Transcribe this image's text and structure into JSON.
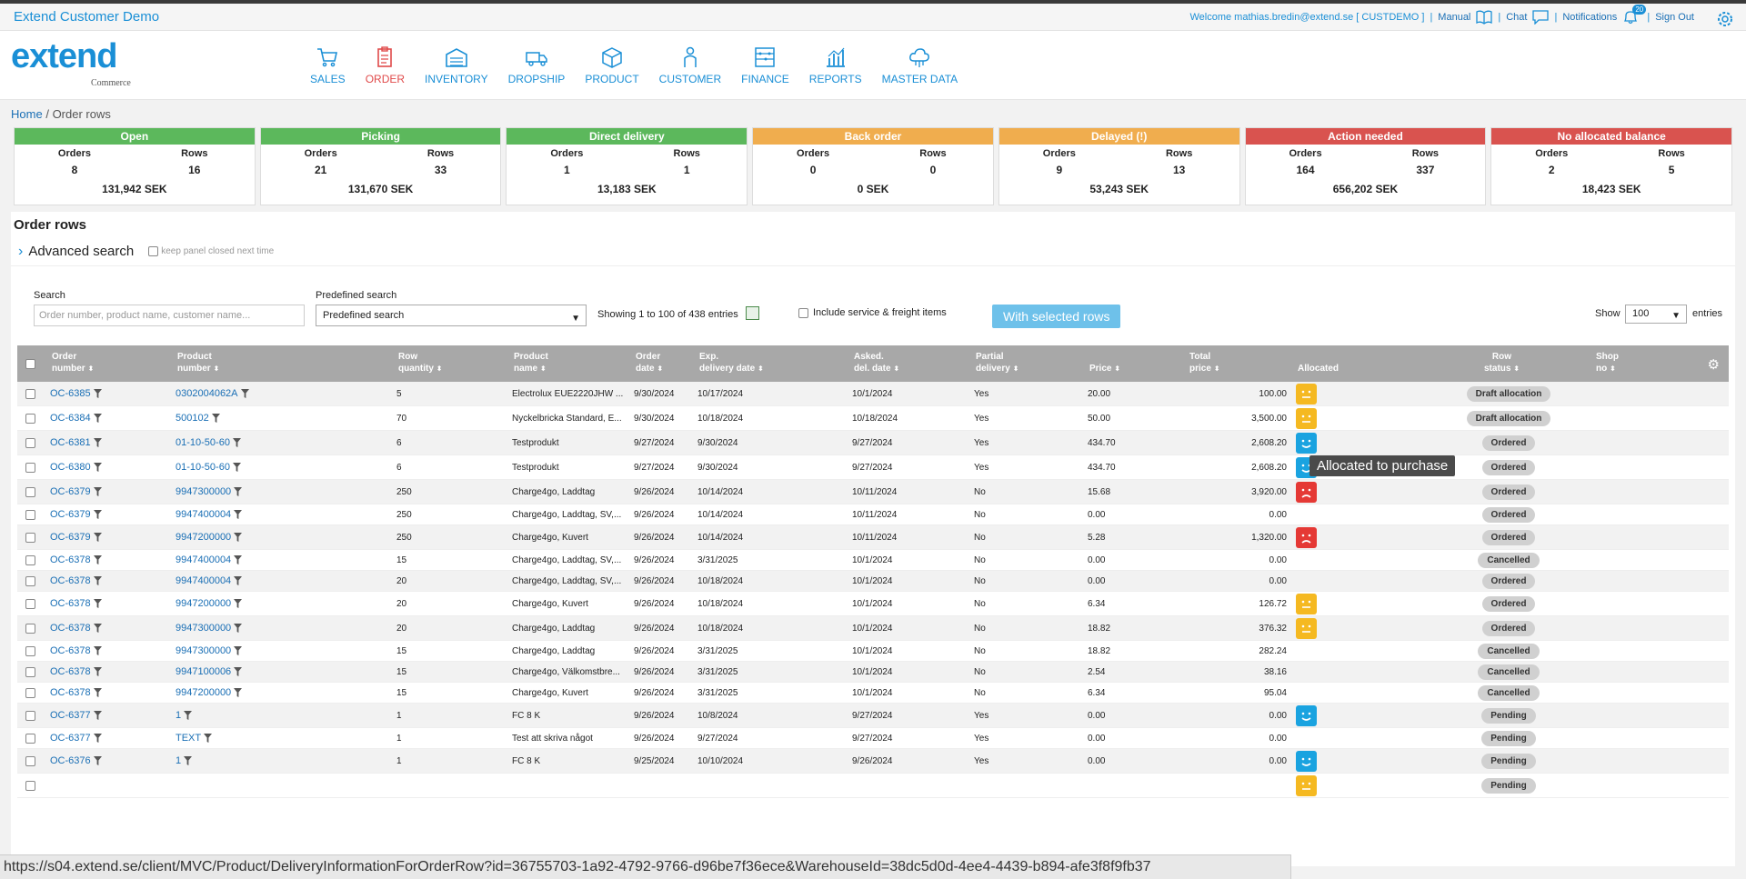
{
  "app": {
    "title": "Extend Customer Demo",
    "welcome": "Welcome mathias.bredin@extend.se [ CUSTDEMO ]",
    "manual": "Manual",
    "chat": "Chat",
    "notifications": "Notifications",
    "notif_count": "20",
    "signout": "Sign Out"
  },
  "logo": {
    "text": "extend",
    "sub": "Commerce"
  },
  "nav": [
    {
      "label": "SALES",
      "icon": "cart-icon"
    },
    {
      "label": "ORDER",
      "icon": "clipboard-icon",
      "active": true
    },
    {
      "label": "INVENTORY",
      "icon": "warehouse-icon"
    },
    {
      "label": "DROPSHIP",
      "icon": "truck-icon"
    },
    {
      "label": "PRODUCT",
      "icon": "box-icon"
    },
    {
      "label": "CUSTOMER",
      "icon": "person-icon"
    },
    {
      "label": "FINANCE",
      "icon": "abacus-icon"
    },
    {
      "label": "REPORTS",
      "icon": "chart-icon"
    },
    {
      "label": "MASTER DATA",
      "icon": "cloud-icon"
    }
  ],
  "breadcrumb": {
    "home": "Home",
    "sep": "/",
    "current": "Order rows"
  },
  "cards": [
    {
      "title": "Open",
      "color": "#5cb85c",
      "orders": "8",
      "rows": "16",
      "sum": "131,942 SEK"
    },
    {
      "title": "Picking",
      "color": "#5cb85c",
      "orders": "21",
      "rows": "33",
      "sum": "131,670 SEK"
    },
    {
      "title": "Direct delivery",
      "color": "#5cb85c",
      "orders": "1",
      "rows": "1",
      "sum": "13,183 SEK"
    },
    {
      "title": "Back order",
      "color": "#f0ad4e",
      "orders": "0",
      "rows": "0",
      "sum": "0 SEK"
    },
    {
      "title": "Delayed (!)",
      "color": "#f0ad4e",
      "orders": "9",
      "rows": "13",
      "sum": "53,243 SEK"
    },
    {
      "title": "Action needed",
      "color": "#d9534f",
      "orders": "164",
      "rows": "337",
      "sum": "656,202 SEK"
    },
    {
      "title": "No allocated balance",
      "color": "#d9534f",
      "orders": "2",
      "rows": "5",
      "sum": "18,423 SEK"
    }
  ],
  "card_labels": {
    "orders": "Orders",
    "rows": "Rows"
  },
  "panel": {
    "title": "Order rows",
    "advanced": "Advanced search",
    "keep_closed": "keep panel closed next time",
    "search_label": "Search",
    "search_placeholder": "Order number, product name, customer name...",
    "predef_label": "Predefined search",
    "predef_value": "Predefined search",
    "showing": "Showing 1 to 100 of 438 entries",
    "include": "Include service & freight items",
    "with_selected": "With selected rows",
    "show": "Show",
    "show_value": "100",
    "entries": "entries"
  },
  "columns": {
    "order_number": [
      "Order",
      "number"
    ],
    "product_number": [
      "Product",
      "number"
    ],
    "row_quantity": [
      "Row",
      "quantity"
    ],
    "product_name": [
      "Product",
      "name"
    ],
    "order_date": [
      "Order",
      "date"
    ],
    "exp_date": [
      "Exp.",
      "delivery date"
    ],
    "asked_date": [
      "Asked.",
      "del. date"
    ],
    "partial": [
      "Partial",
      "delivery"
    ],
    "price": [
      "",
      "Price"
    ],
    "total": [
      "Total",
      "price"
    ],
    "allocated": [
      "",
      "Allocated"
    ],
    "status": [
      "Row",
      "status"
    ],
    "shop": [
      "Shop",
      "no"
    ]
  },
  "rows": [
    {
      "order": "OC-6385",
      "product": "0302004062A",
      "qty": "5",
      "name": "Electrolux EUE2220JHW ...",
      "odate": "9/30/2024",
      "exp": "10/17/2024",
      "asked": "10/1/2024",
      "partial": "Yes",
      "price": "20.00",
      "total": "100.00",
      "alloc": "yellow",
      "status": "Draft allocation"
    },
    {
      "order": "OC-6384",
      "product": "500102",
      "qty": "70",
      "name": "Nyckelbricka Standard, E...",
      "odate": "9/30/2024",
      "exp": "10/18/2024",
      "asked": "10/18/2024",
      "partial": "Yes",
      "price": "50.00",
      "total": "3,500.00",
      "alloc": "yellow",
      "status": "Draft allocation"
    },
    {
      "order": "OC-6381",
      "product": "01-10-50-60",
      "qty": "6",
      "name": "Testprodukt",
      "odate": "9/27/2024",
      "exp": "9/30/2024",
      "asked": "9/27/2024",
      "partial": "Yes",
      "price": "434.70",
      "total": "2,608.20",
      "alloc": "blue",
      "status": "Ordered"
    },
    {
      "order": "OC-6380",
      "product": "01-10-50-60",
      "qty": "6",
      "name": "Testprodukt",
      "odate": "9/27/2024",
      "exp": "9/30/2024",
      "asked": "9/27/2024",
      "partial": "Yes",
      "price": "434.70",
      "total": "2,608.20",
      "alloc": "blue",
      "status": "Ordered"
    },
    {
      "order": "OC-6379",
      "product": "9947300000",
      "qty": "250",
      "name": "Charge4go, Laddtag",
      "odate": "9/26/2024",
      "exp": "10/14/2024",
      "asked": "10/11/2024",
      "partial": "No",
      "price": "15.68",
      "total": "3,920.00",
      "alloc": "red",
      "status": "Ordered"
    },
    {
      "order": "OC-6379",
      "product": "9947400004",
      "qty": "250",
      "name": "Charge4go, Laddtag, SV,...",
      "odate": "9/26/2024",
      "exp": "10/14/2024",
      "asked": "10/11/2024",
      "partial": "No",
      "price": "0.00",
      "total": "0.00",
      "alloc": "",
      "status": "Ordered",
      "short": true
    },
    {
      "order": "OC-6379",
      "product": "9947200000",
      "qty": "250",
      "name": "Charge4go, Kuvert",
      "odate": "9/26/2024",
      "exp": "10/14/2024",
      "asked": "10/11/2024",
      "partial": "No",
      "price": "5.28",
      "total": "1,320.00",
      "alloc": "red",
      "status": "Ordered"
    },
    {
      "order": "OC-6378",
      "product": "9947400004",
      "qty": "15",
      "name": "Charge4go, Laddtag, SV,...",
      "odate": "9/26/2024",
      "exp": "3/31/2025",
      "asked": "10/1/2024",
      "partial": "No",
      "price": "0.00",
      "total": "0.00",
      "alloc": "",
      "status": "Cancelled",
      "short": true
    },
    {
      "order": "OC-6378",
      "product": "9947400004",
      "qty": "20",
      "name": "Charge4go, Laddtag, SV,...",
      "odate": "9/26/2024",
      "exp": "10/18/2024",
      "asked": "10/1/2024",
      "partial": "No",
      "price": "0.00",
      "total": "0.00",
      "alloc": "",
      "status": "Ordered",
      "short": true
    },
    {
      "order": "OC-6378",
      "product": "9947200000",
      "qty": "20",
      "name": "Charge4go, Kuvert",
      "odate": "9/26/2024",
      "exp": "10/18/2024",
      "asked": "10/1/2024",
      "partial": "No",
      "price": "6.34",
      "total": "126.72",
      "alloc": "yellow",
      "status": "Ordered"
    },
    {
      "order": "OC-6378",
      "product": "9947300000",
      "qty": "20",
      "name": "Charge4go, Laddtag",
      "odate": "9/26/2024",
      "exp": "10/18/2024",
      "asked": "10/1/2024",
      "partial": "No",
      "price": "18.82",
      "total": "376.32",
      "alloc": "yellow",
      "status": "Ordered"
    },
    {
      "order": "OC-6378",
      "product": "9947300000",
      "qty": "15",
      "name": "Charge4go, Laddtag",
      "odate": "9/26/2024",
      "exp": "3/31/2025",
      "asked": "10/1/2024",
      "partial": "No",
      "price": "18.82",
      "total": "282.24",
      "alloc": "",
      "status": "Cancelled",
      "short": true
    },
    {
      "order": "OC-6378",
      "product": "9947100006",
      "qty": "15",
      "name": "Charge4go, Välkomstbre...",
      "odate": "9/26/2024",
      "exp": "3/31/2025",
      "asked": "10/1/2024",
      "partial": "No",
      "price": "2.54",
      "total": "38.16",
      "alloc": "",
      "status": "Cancelled",
      "short": true
    },
    {
      "order": "OC-6378",
      "product": "9947200000",
      "qty": "15",
      "name": "Charge4go, Kuvert",
      "odate": "9/26/2024",
      "exp": "3/31/2025",
      "asked": "10/1/2024",
      "partial": "No",
      "price": "6.34",
      "total": "95.04",
      "alloc": "",
      "status": "Cancelled",
      "short": true
    },
    {
      "order": "OC-6377",
      "product": "1",
      "qty": "1",
      "name": "FC 8 K",
      "odate": "9/26/2024",
      "exp": "10/8/2024",
      "asked": "9/27/2024",
      "partial": "Yes",
      "price": "0.00",
      "total": "0.00",
      "alloc": "blue",
      "status": "Pending"
    },
    {
      "order": "OC-6377",
      "product": "TEXT",
      "qty": "1",
      "name": "Test att skriva något",
      "odate": "9/26/2024",
      "exp": "9/27/2024",
      "asked": "9/27/2024",
      "partial": "Yes",
      "price": "0.00",
      "total": "0.00",
      "alloc": "",
      "status": "Pending",
      "short": true
    },
    {
      "order": "OC-6376",
      "product": "1",
      "qty": "1",
      "name": "FC 8 K",
      "odate": "9/25/2024",
      "exp": "10/10/2024",
      "asked": "9/26/2024",
      "partial": "Yes",
      "price": "0.00",
      "total": "0.00",
      "alloc": "blue",
      "status": "Pending"
    },
    {
      "order": "",
      "product": "",
      "qty": "",
      "name": "",
      "odate": "",
      "exp": "",
      "asked": "",
      "partial": "",
      "price": "",
      "total": "",
      "alloc": "yellow",
      "status": "Pending"
    }
  ],
  "tooltip": "Allocated to purchase",
  "statusbar": "https://s04.extend.se/client/MVC/Product/DeliveryInformationForOrderRow?id=36755703-1a92-4792-9766-d96be7f36ece&WarehouseId=38dc5d0d-4ee4-4439-b894-afe3f8f9fb37"
}
